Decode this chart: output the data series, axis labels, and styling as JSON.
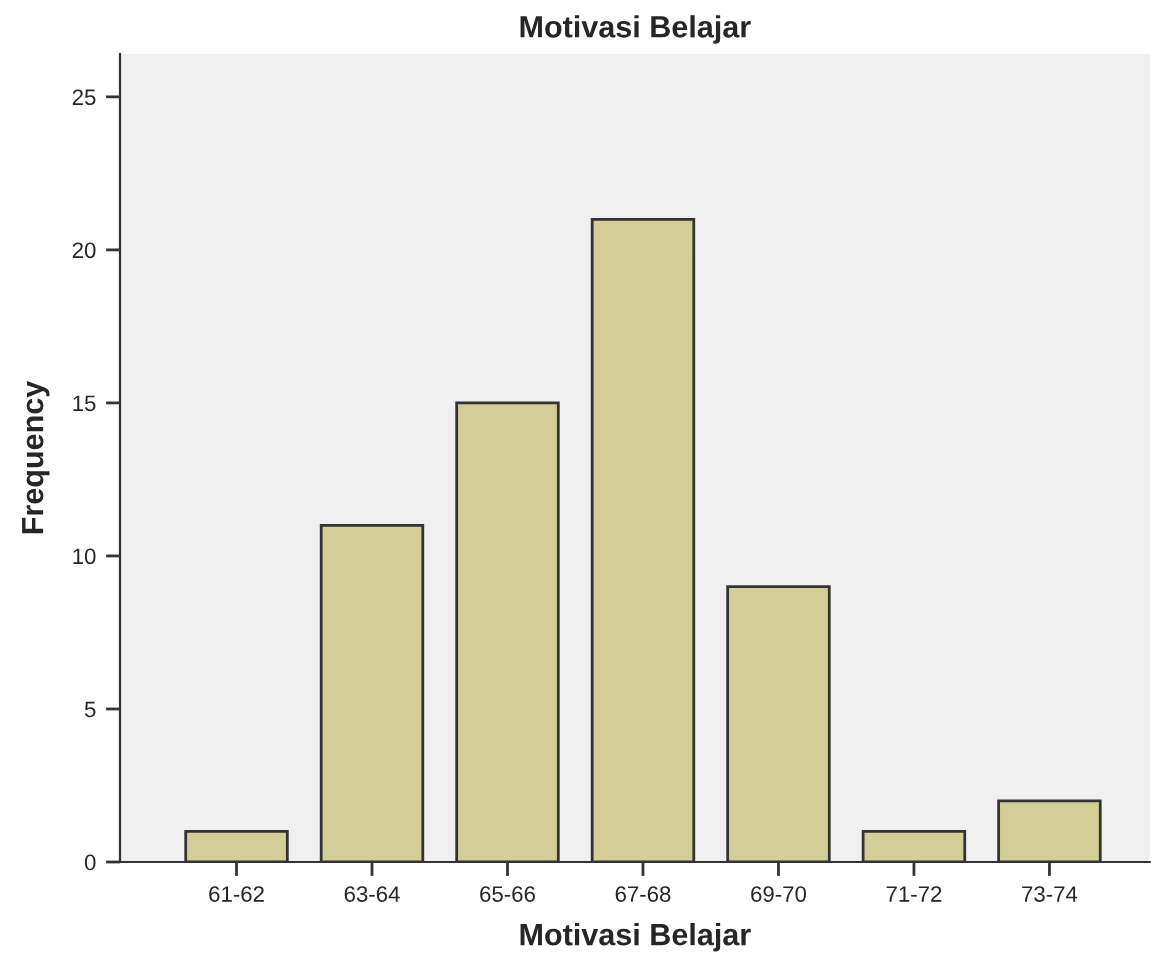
{
  "chart_data": {
    "type": "bar",
    "title": "Motivasi Belajar",
    "xlabel": "Motivasi Belajar",
    "ylabel": "Frequency",
    "categories": [
      "61-62",
      "63-64",
      "65-66",
      "67-68",
      "69-70",
      "71-72",
      "73-74"
    ],
    "values": [
      1,
      11,
      15,
      21,
      9,
      1,
      2
    ],
    "color": "#d3ce97",
    "ylim": [
      0,
      26.4
    ],
    "yticks": [
      0,
      5,
      10,
      15,
      20,
      25
    ],
    "grid": false
  }
}
